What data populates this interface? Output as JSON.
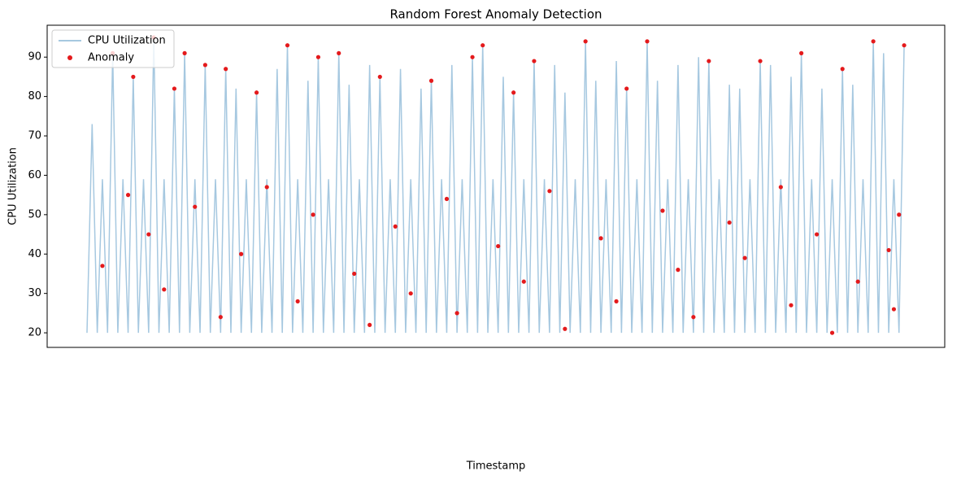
{
  "chart_data": {
    "type": "line",
    "title": "Random Forest Anomaly Detection",
    "xlabel": "Timestamp",
    "ylabel": "CPU Utilization",
    "ylim": [
      16.3,
      98.1
    ],
    "yticks": [
      20,
      30,
      40,
      50,
      60,
      70,
      80,
      90
    ],
    "xlim": [
      -7.75,
      166.9
    ],
    "legend": "upper left",
    "series": [
      {
        "name": "CPU Utilization",
        "color": "#a6c8e0",
        "values": [
          20,
          73,
          20,
          59,
          20,
          91,
          20,
          59,
          20,
          85,
          20,
          59,
          20,
          95,
          20,
          59,
          20,
          82,
          20,
          91,
          20,
          59,
          20,
          88,
          20,
          59,
          20,
          87,
          20,
          82,
          20,
          59,
          20,
          81,
          20,
          59,
          20,
          87,
          20,
          93,
          20,
          59,
          20,
          84,
          20,
          90,
          20,
          59,
          20,
          91,
          20,
          83,
          20,
          59,
          20,
          88,
          20,
          85,
          20,
          59,
          20,
          87,
          20,
          59,
          20,
          82,
          20,
          84,
          20,
          59,
          20,
          88,
          20,
          59,
          20,
          90,
          20,
          93,
          20,
          59,
          20,
          85,
          20,
          81,
          20,
          59,
          20,
          89,
          20,
          59,
          20,
          88,
          20,
          81,
          20,
          59,
          20,
          94,
          20,
          84,
          20,
          59,
          20,
          89,
          20,
          82,
          20,
          59,
          20,
          94,
          20,
          84,
          20,
          59,
          20,
          88,
          20,
          59,
          20,
          90,
          20,
          89,
          20,
          59,
          20,
          83,
          20,
          82,
          20,
          59,
          20,
          89,
          20,
          88,
          20,
          59,
          20,
          85,
          20,
          91,
          20,
          59,
          20,
          82,
          20,
          59,
          20,
          87,
          20,
          83,
          20,
          59,
          20,
          94,
          20,
          91,
          20,
          59,
          20,
          93
        ]
      },
      {
        "name": "Anomaly",
        "type": "scatter",
        "color": "#e41a1c",
        "x": [
          5,
          9,
          13,
          17,
          19,
          23,
          27,
          33,
          39,
          45,
          49,
          57,
          67,
          75,
          77,
          83,
          87,
          97,
          105,
          109,
          121,
          131,
          139,
          147,
          153,
          159,
          3,
          8,
          12,
          15,
          21,
          26,
          30,
          35,
          41,
          44,
          52,
          55,
          60,
          63,
          70,
          72,
          80,
          85,
          90,
          93,
          100,
          103,
          112,
          115,
          118,
          125,
          128,
          135,
          137,
          142,
          145,
          150,
          156,
          158,
          157
        ],
        "values": [
          91,
          85,
          95,
          82,
          91,
          88,
          87,
          81,
          93,
          90,
          91,
          85,
          84,
          90,
          93,
          81,
          89,
          94,
          82,
          94,
          89,
          89,
          91,
          87,
          94,
          93,
          37,
          55,
          45,
          31,
          52,
          24,
          40,
          57,
          28,
          50,
          35,
          22,
          47,
          30,
          54,
          25,
          42,
          33,
          56,
          21,
          44,
          28,
          51,
          36,
          24,
          48,
          39,
          57,
          27,
          45,
          20,
          33,
          41,
          50,
          26
        ]
      }
    ]
  }
}
